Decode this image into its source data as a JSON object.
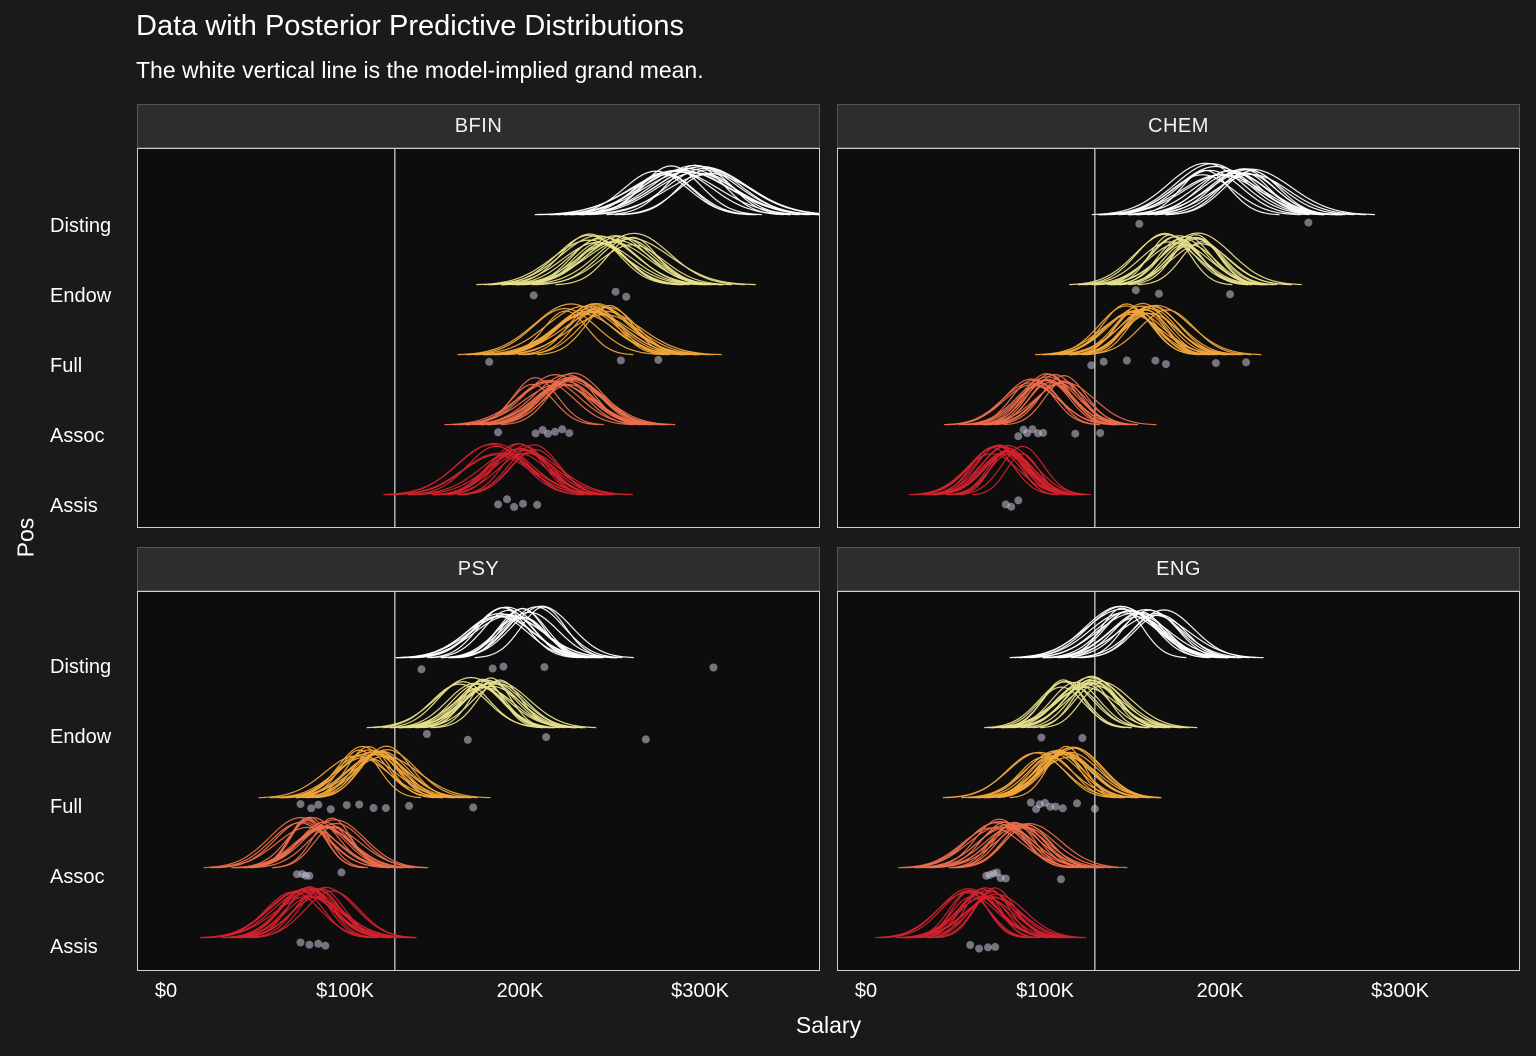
{
  "title": "Data with Posterior Predictive Distributions",
  "subtitle": "The white vertical line is the model-implied grand mean.",
  "axis": {
    "x_label": "Salary",
    "y_label": "Pos",
    "x_ticks": [
      "$0",
      "$100K",
      "200K",
      "$300K"
    ],
    "x_tick_values_k": [
      0,
      100,
      200,
      300
    ],
    "y_categories": [
      "Disting",
      "Endow",
      "Full",
      "Assoc",
      "Assis"
    ]
  },
  "colors": {
    "background": "#1a1a1a",
    "panel": "#0d0d0d",
    "strip": "#2d2d2d",
    "panel_border": "#cfcfcf",
    "grand_mean_line": "#a8a8a8",
    "point": "#cdc6de",
    "palette": {
      "Disting": "#ffffff",
      "Endow": "#e7e08c",
      "Full": "#f0a73c",
      "Assoc": "#ec6e4c",
      "Assis": "#d1232e"
    }
  },
  "chart_data": {
    "type": "ridgeline-density",
    "x_unit": "thousand USD",
    "grand_mean_k": 128,
    "n_draws_per_group": 18,
    "facets": [
      {
        "name": "BFIN",
        "groups": [
          {
            "pos": "Disting",
            "center": 290,
            "sd": 21,
            "points": []
          },
          {
            "pos": "Endow",
            "center": 248,
            "sd": 18,
            "points": [
              206,
              252,
              258
            ]
          },
          {
            "pos": "Full",
            "center": 236,
            "sd": 17,
            "points": [
              181,
              255,
              276
            ]
          },
          {
            "pos": "Assoc",
            "center": 216,
            "sd": 16,
            "points": [
              186,
              207,
              211,
              214,
              218,
              222,
              226
            ]
          },
          {
            "pos": "Assis",
            "center": 194,
            "sd": 16,
            "points": [
              186,
              191,
              195,
              200,
              208
            ]
          }
        ]
      },
      {
        "name": "CHEM",
        "groups": [
          {
            "pos": "Disting",
            "center": 202,
            "sd": 18,
            "points": [
              153,
              248
            ]
          },
          {
            "pos": "Endow",
            "center": 177,
            "sd": 15,
            "points": [
              151,
              164,
              204
            ]
          },
          {
            "pos": "Full",
            "center": 157,
            "sd": 15,
            "points": [
              126,
              133,
              146,
              162,
              168,
              196,
              213
            ]
          },
          {
            "pos": "Assoc",
            "center": 101,
            "sd": 13,
            "points": [
              85,
              88,
              90,
              93,
              96,
              99,
              117,
              131
            ]
          },
          {
            "pos": "Assis",
            "center": 79,
            "sd": 12,
            "points": [
              78,
              81,
              85
            ]
          }
        ]
      },
      {
        "name": "PSY",
        "groups": [
          {
            "pos": "Disting",
            "center": 199,
            "sd": 16,
            "points": [
              143,
              183,
              189,
              212,
              307
            ]
          },
          {
            "pos": "Endow",
            "center": 176,
            "sd": 15,
            "points": [
              146,
              169,
              213,
              269
            ]
          },
          {
            "pos": "Full",
            "center": 115,
            "sd": 15,
            "points": [
              75,
              81,
              85,
              92,
              101,
              108,
              116,
              123,
              136,
              172
            ]
          },
          {
            "pos": "Assoc",
            "center": 85,
            "sd": 14,
            "points": [
              73,
              76,
              78,
              80,
              98
            ]
          },
          {
            "pos": "Assis",
            "center": 82,
            "sd": 15,
            "points": [
              75,
              80,
              85,
              89
            ]
          }
        ]
      },
      {
        "name": "ENG",
        "groups": [
          {
            "pos": "Disting",
            "center": 154,
            "sd": 16,
            "points": []
          },
          {
            "pos": "Endow",
            "center": 120,
            "sd": 14,
            "points": [
              98,
              121
            ]
          },
          {
            "pos": "Full",
            "center": 106,
            "sd": 14,
            "points": [
              92,
              95,
              97,
              100,
              103,
              106,
              110,
              118,
              128
            ]
          },
          {
            "pos": "Assoc",
            "center": 81,
            "sd": 14,
            "points": [
              67,
              69,
              71,
              73,
              75,
              78,
              109
            ]
          },
          {
            "pos": "Assis",
            "center": 64,
            "sd": 13,
            "points": [
              58,
              63,
              68,
              72
            ]
          }
        ]
      }
    ]
  }
}
